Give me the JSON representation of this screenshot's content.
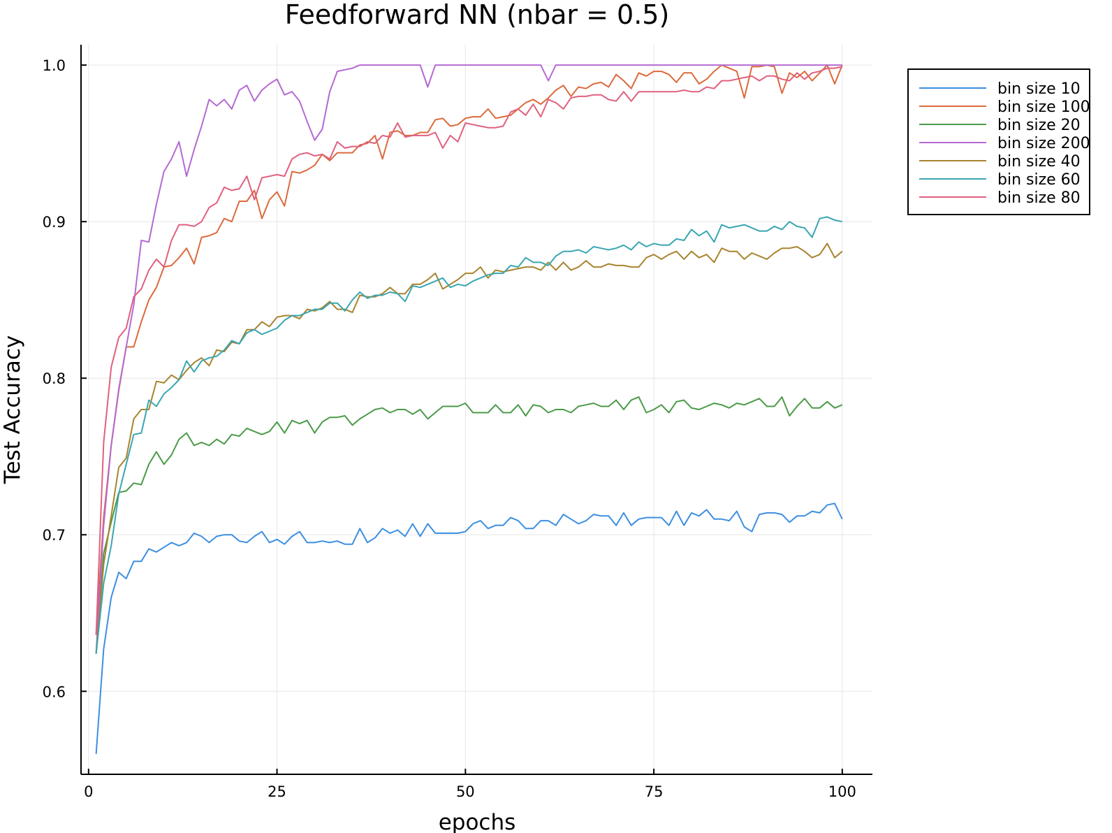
{
  "chart_data": {
    "type": "line",
    "title": "Feedforward NN (nbar = 0.5)",
    "xlabel": "epochs",
    "ylabel": "Test Accuracy",
    "xlim": [
      -1,
      104
    ],
    "ylim": [
      0.547,
      1.013
    ],
    "xticks": [
      0,
      25,
      50,
      75,
      100
    ],
    "xtick_labels": [
      "0",
      "25",
      "50",
      "75",
      "100"
    ],
    "yticks": [
      0.6,
      0.7,
      0.8,
      0.9,
      1.0
    ],
    "ytick_labels": [
      "0.6",
      "0.7",
      "0.8",
      "0.9",
      "1.0"
    ],
    "grid": true,
    "legend_position": "top-right (outside)",
    "x": [
      1,
      2,
      3,
      4,
      5,
      6,
      7,
      8,
      9,
      10,
      11,
      12,
      13,
      14,
      15,
      16,
      17,
      18,
      19,
      20,
      21,
      22,
      23,
      24,
      25,
      26,
      27,
      28,
      29,
      30,
      31,
      32,
      33,
      34,
      35,
      36,
      37,
      38,
      39,
      40,
      41,
      42,
      43,
      44,
      45,
      46,
      47,
      48,
      49,
      50,
      51,
      52,
      53,
      54,
      55,
      56,
      57,
      58,
      59,
      60,
      61,
      62,
      63,
      64,
      65,
      66,
      67,
      68,
      69,
      70,
      71,
      72,
      73,
      74,
      75,
      76,
      77,
      78,
      79,
      80,
      81,
      82,
      83,
      84,
      85,
      86,
      87,
      88,
      89,
      90,
      91,
      92,
      93,
      94,
      95,
      96,
      97,
      98,
      99,
      100
    ],
    "series": [
      {
        "name": "bin size 10",
        "color": "#3d8fe0",
        "values": [
          0.56,
          0.627,
          0.66,
          0.676,
          0.672,
          0.683,
          0.683,
          0.691,
          0.689,
          0.692,
          0.695,
          0.693,
          0.695,
          0.701,
          0.699,
          0.695,
          0.699,
          0.7,
          0.7,
          0.696,
          0.695,
          0.699,
          0.702,
          0.695,
          0.697,
          0.694,
          0.699,
          0.702,
          0.695,
          0.695,
          0.696,
          0.695,
          0.696,
          0.694,
          0.694,
          0.704,
          0.695,
          0.698,
          0.704,
          0.701,
          0.703,
          0.699,
          0.707,
          0.699,
          0.707,
          0.701,
          0.701,
          0.701,
          0.701,
          0.702,
          0.707,
          0.709,
          0.704,
          0.706,
          0.706,
          0.711,
          0.709,
          0.704,
          0.704,
          0.709,
          0.709,
          0.706,
          0.713,
          0.71,
          0.707,
          0.709,
          0.713,
          0.712,
          0.712,
          0.706,
          0.714,
          0.706,
          0.71,
          0.711,
          0.711,
          0.711,
          0.706,
          0.715,
          0.706,
          0.714,
          0.712,
          0.716,
          0.71,
          0.71,
          0.709,
          0.715,
          0.705,
          0.702,
          0.713,
          0.714,
          0.714,
          0.713,
          0.708,
          0.712,
          0.712,
          0.715,
          0.714,
          0.719,
          0.72,
          0.71
        ]
      },
      {
        "name": "bin size 100",
        "color": "#dc6a3c",
        "values": [
          0.636,
          0.711,
          0.757,
          0.792,
          0.82,
          0.82,
          0.836,
          0.85,
          0.858,
          0.871,
          0.872,
          0.877,
          0.883,
          0.873,
          0.89,
          0.891,
          0.893,
          0.902,
          0.9,
          0.913,
          0.913,
          0.92,
          0.902,
          0.914,
          0.919,
          0.91,
          0.932,
          0.931,
          0.933,
          0.936,
          0.943,
          0.939,
          0.944,
          0.944,
          0.944,
          0.949,
          0.95,
          0.955,
          0.94,
          0.957,
          0.958,
          0.955,
          0.955,
          0.957,
          0.957,
          0.965,
          0.966,
          0.961,
          0.962,
          0.966,
          0.967,
          0.967,
          0.972,
          0.966,
          0.967,
          0.968,
          0.972,
          0.976,
          0.978,
          0.975,
          0.979,
          0.984,
          0.987,
          0.98,
          0.986,
          0.985,
          0.988,
          0.989,
          0.986,
          0.994,
          0.99,
          0.985,
          0.995,
          0.993,
          0.996,
          0.996,
          0.994,
          0.989,
          0.995,
          0.995,
          0.988,
          0.991,
          0.996,
          1.0,
          0.998,
          0.996,
          0.979,
          0.999,
          0.999,
          1.0,
          0.999,
          0.982,
          0.995,
          0.992,
          0.996,
          0.99,
          0.995,
          1.0,
          0.988,
          1.0
        ]
      },
      {
        "name": "bin size 20",
        "color": "#4b9a48",
        "values": [
          0.624,
          0.688,
          0.708,
          0.727,
          0.728,
          0.733,
          0.732,
          0.745,
          0.753,
          0.745,
          0.751,
          0.761,
          0.765,
          0.757,
          0.759,
          0.757,
          0.761,
          0.758,
          0.764,
          0.763,
          0.768,
          0.766,
          0.764,
          0.766,
          0.772,
          0.765,
          0.773,
          0.771,
          0.773,
          0.765,
          0.772,
          0.775,
          0.775,
          0.776,
          0.77,
          0.774,
          0.777,
          0.78,
          0.781,
          0.778,
          0.78,
          0.78,
          0.777,
          0.78,
          0.774,
          0.778,
          0.782,
          0.782,
          0.782,
          0.784,
          0.778,
          0.778,
          0.778,
          0.783,
          0.778,
          0.778,
          0.783,
          0.776,
          0.783,
          0.782,
          0.778,
          0.78,
          0.78,
          0.778,
          0.782,
          0.783,
          0.784,
          0.782,
          0.782,
          0.786,
          0.78,
          0.786,
          0.788,
          0.778,
          0.78,
          0.783,
          0.778,
          0.785,
          0.786,
          0.781,
          0.78,
          0.782,
          0.784,
          0.783,
          0.781,
          0.784,
          0.783,
          0.785,
          0.787,
          0.782,
          0.782,
          0.788,
          0.776,
          0.782,
          0.787,
          0.781,
          0.781,
          0.785,
          0.781,
          0.783
        ]
      },
      {
        "name": "bin size 200",
        "color": "#b569d2",
        "values": [
          0.624,
          0.706,
          0.757,
          0.793,
          0.82,
          0.847,
          0.888,
          0.887,
          0.911,
          0.932,
          0.94,
          0.951,
          0.929,
          0.946,
          0.961,
          0.978,
          0.974,
          0.978,
          0.972,
          0.984,
          0.987,
          0.977,
          0.984,
          0.988,
          0.991,
          0.981,
          0.983,
          0.977,
          0.964,
          0.952,
          0.959,
          0.983,
          0.996,
          0.997,
          0.998,
          1.0,
          1.0,
          1.0,
          1.0,
          1.0,
          1.0,
          1.0,
          1.0,
          1.0,
          0.986,
          1.0,
          1.0,
          1.0,
          1.0,
          1.0,
          1.0,
          1.0,
          1.0,
          1.0,
          1.0,
          1.0,
          1.0,
          1.0,
          1.0,
          1.0,
          0.99,
          1.0,
          1.0,
          1.0,
          1.0,
          1.0,
          1.0,
          1.0,
          1.0,
          1.0,
          1.0,
          1.0,
          1.0,
          1.0,
          1.0,
          1.0,
          1.0,
          1.0,
          1.0,
          1.0,
          1.0,
          1.0,
          1.0,
          1.0,
          1.0,
          1.0,
          1.0,
          1.0,
          1.0,
          1.0,
          1.0,
          1.0,
          1.0,
          1.0,
          1.0,
          1.0,
          1.0,
          1.0,
          1.0,
          1.0
        ]
      },
      {
        "name": "bin size 40",
        "color": "#a8842e",
        "values": [
          0.624,
          0.681,
          0.712,
          0.743,
          0.749,
          0.774,
          0.78,
          0.78,
          0.798,
          0.797,
          0.802,
          0.799,
          0.805,
          0.81,
          0.813,
          0.808,
          0.818,
          0.817,
          0.823,
          0.822,
          0.831,
          0.831,
          0.836,
          0.833,
          0.839,
          0.84,
          0.84,
          0.838,
          0.844,
          0.843,
          0.845,
          0.849,
          0.844,
          0.844,
          0.842,
          0.853,
          0.852,
          0.852,
          0.854,
          0.858,
          0.854,
          0.854,
          0.86,
          0.86,
          0.863,
          0.867,
          0.857,
          0.86,
          0.863,
          0.867,
          0.867,
          0.871,
          0.864,
          0.869,
          0.868,
          0.869,
          0.87,
          0.871,
          0.871,
          0.869,
          0.874,
          0.869,
          0.874,
          0.869,
          0.871,
          0.875,
          0.871,
          0.871,
          0.873,
          0.872,
          0.872,
          0.871,
          0.871,
          0.877,
          0.879,
          0.876,
          0.879,
          0.881,
          0.876,
          0.881,
          0.877,
          0.879,
          0.874,
          0.883,
          0.881,
          0.881,
          0.876,
          0.88,
          0.878,
          0.876,
          0.88,
          0.883,
          0.883,
          0.884,
          0.881,
          0.877,
          0.879,
          0.886,
          0.877,
          0.881
        ]
      },
      {
        "name": "bin size 60",
        "color": "#39a6b1",
        "values": [
          0.624,
          0.669,
          0.693,
          0.726,
          0.745,
          0.764,
          0.765,
          0.786,
          0.782,
          0.79,
          0.794,
          0.799,
          0.811,
          0.804,
          0.811,
          0.813,
          0.814,
          0.818,
          0.824,
          0.822,
          0.829,
          0.831,
          0.828,
          0.83,
          0.832,
          0.837,
          0.84,
          0.84,
          0.842,
          0.844,
          0.844,
          0.848,
          0.848,
          0.843,
          0.85,
          0.855,
          0.851,
          0.853,
          0.853,
          0.855,
          0.854,
          0.849,
          0.859,
          0.858,
          0.86,
          0.862,
          0.864,
          0.858,
          0.86,
          0.859,
          0.862,
          0.864,
          0.866,
          0.867,
          0.867,
          0.872,
          0.871,
          0.877,
          0.874,
          0.874,
          0.872,
          0.878,
          0.881,
          0.881,
          0.882,
          0.88,
          0.884,
          0.883,
          0.882,
          0.883,
          0.885,
          0.882,
          0.887,
          0.884,
          0.886,
          0.885,
          0.885,
          0.889,
          0.888,
          0.895,
          0.891,
          0.894,
          0.887,
          0.898,
          0.896,
          0.897,
          0.898,
          0.896,
          0.894,
          0.894,
          0.897,
          0.895,
          0.9,
          0.897,
          0.896,
          0.89,
          0.902,
          0.903,
          0.901,
          0.9
        ]
      },
      {
        "name": "bin size 80",
        "color": "#e0607e",
        "values": [
          0.636,
          0.759,
          0.807,
          0.826,
          0.832,
          0.852,
          0.857,
          0.869,
          0.876,
          0.871,
          0.888,
          0.898,
          0.898,
          0.897,
          0.9,
          0.909,
          0.912,
          0.922,
          0.92,
          0.921,
          0.929,
          0.914,
          0.928,
          0.929,
          0.93,
          0.929,
          0.94,
          0.943,
          0.944,
          0.942,
          0.943,
          0.94,
          0.951,
          0.947,
          0.948,
          0.948,
          0.951,
          0.95,
          0.955,
          0.954,
          0.963,
          0.954,
          0.955,
          0.955,
          0.955,
          0.957,
          0.947,
          0.955,
          0.951,
          0.963,
          0.962,
          0.961,
          0.96,
          0.96,
          0.961,
          0.97,
          0.972,
          0.968,
          0.975,
          0.967,
          0.978,
          0.976,
          0.972,
          0.979,
          0.98,
          0.98,
          0.981,
          0.981,
          0.978,
          0.977,
          0.983,
          0.977,
          0.983,
          0.983,
          0.983,
          0.983,
          0.983,
          0.983,
          0.984,
          0.983,
          0.983,
          0.986,
          0.985,
          0.99,
          0.99,
          0.991,
          0.992,
          0.993,
          0.99,
          0.993,
          0.993,
          0.991,
          0.99,
          0.995,
          0.991,
          0.995,
          0.996,
          0.998,
          0.998,
          0.999
        ]
      }
    ]
  }
}
